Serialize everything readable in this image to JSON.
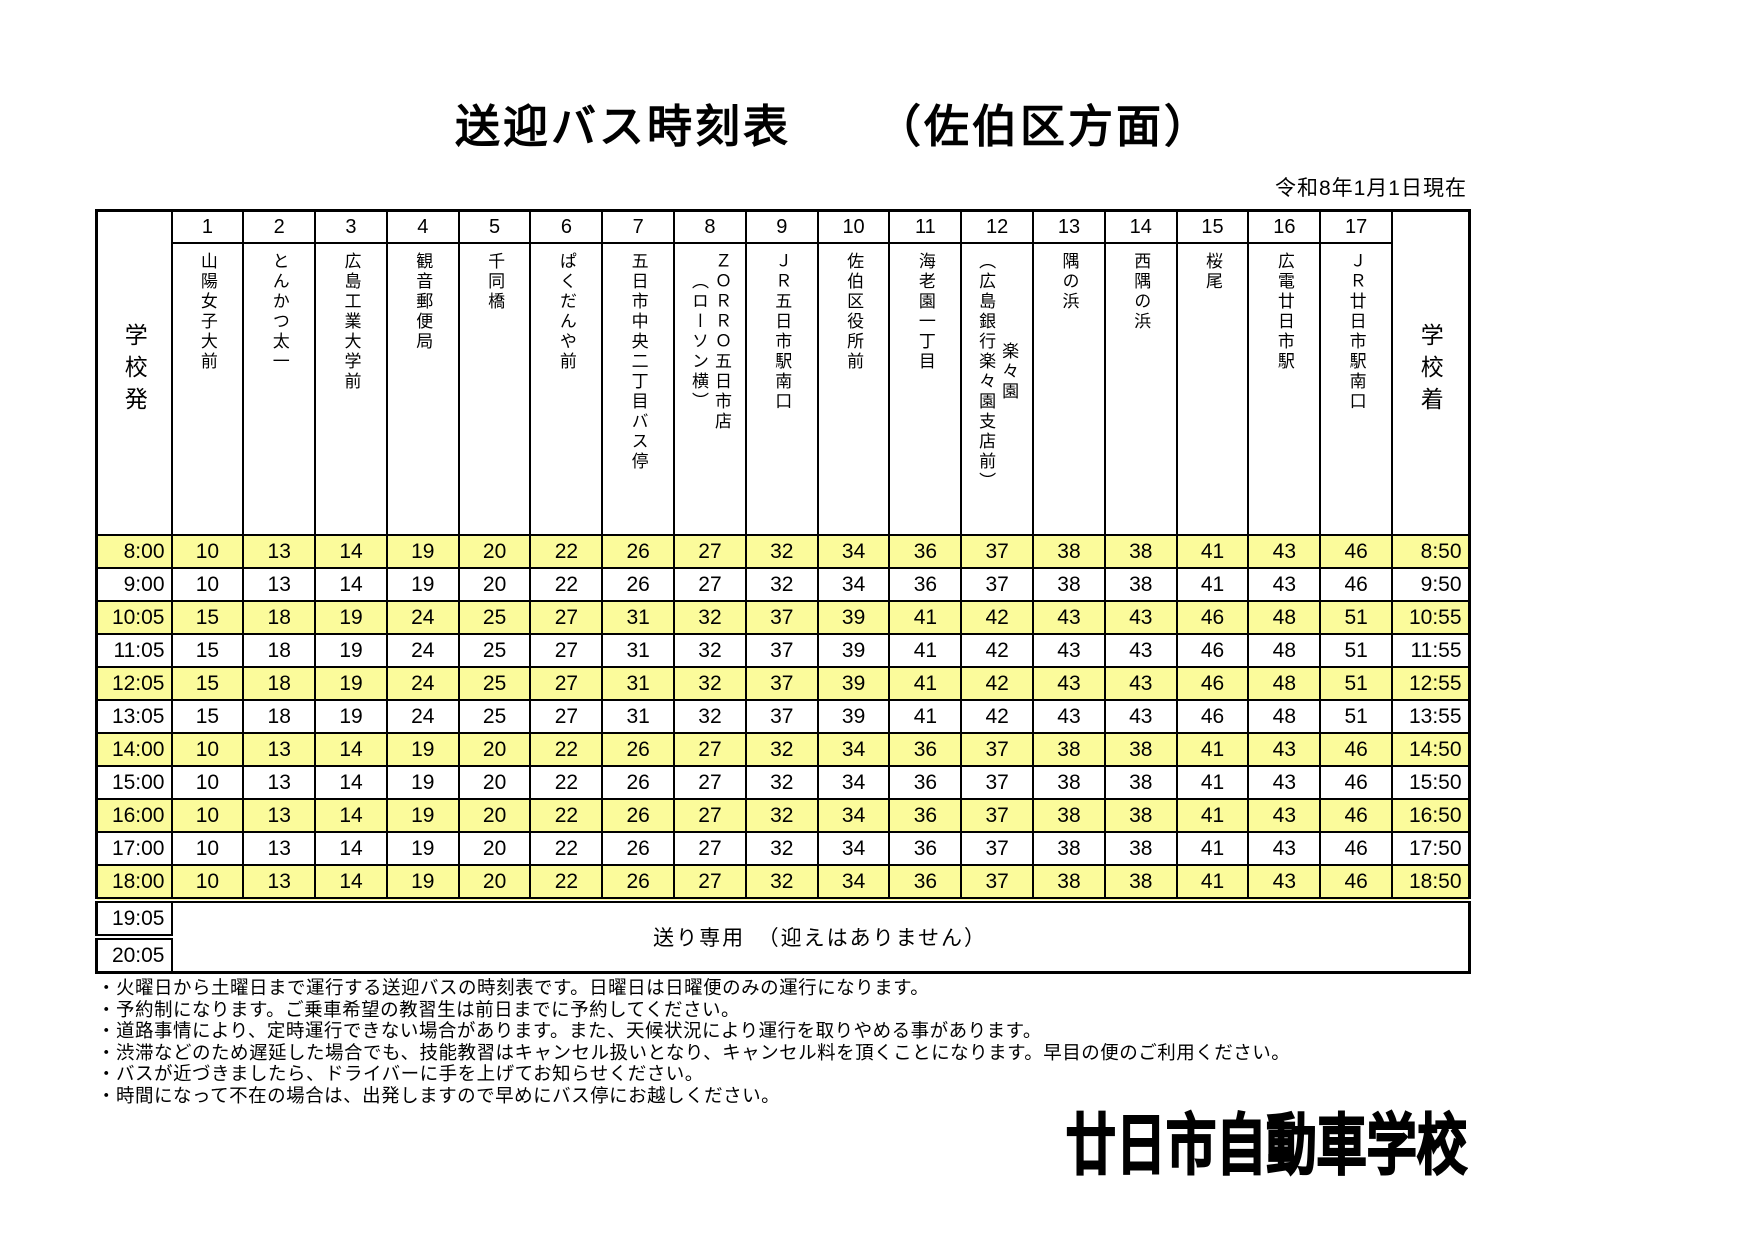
{
  "title": {
    "main": "送迎バス時刻表",
    "direction": "（佐伯区方面）"
  },
  "date_note": "令和8年1月1日現在",
  "colors": {
    "highlight": "#FBFB9B"
  },
  "table": {
    "depart_header": "学校発",
    "arrive_header": "学校着",
    "stops": [
      {
        "no": "1",
        "name": "山陽女子大前"
      },
      {
        "no": "2",
        "name": "とんかつ太一"
      },
      {
        "no": "3",
        "name": "広島工業大学前"
      },
      {
        "no": "4",
        "name": "観音郵便局"
      },
      {
        "no": "5",
        "name": "千同橋"
      },
      {
        "no": "6",
        "name": "ぱくだんや前"
      },
      {
        "no": "7",
        "name": "五日市中央二丁目バス停"
      },
      {
        "no": "8",
        "name": "ＺＯＲＲＯ五日市店\n（ローソン横）"
      },
      {
        "no": "9",
        "name": "ＪＲ五日市駅南口"
      },
      {
        "no": "10",
        "name": "佐伯区役所前"
      },
      {
        "no": "11",
        "name": "海老園一丁目"
      },
      {
        "no": "12",
        "name": "楽々園\n（広島銀行楽々園支店前）"
      },
      {
        "no": "13",
        "name": "隅の浜"
      },
      {
        "no": "14",
        "name": "西隅の浜"
      },
      {
        "no": "15",
        "name": "桜尾"
      },
      {
        "no": "16",
        "name": "広電廿日市駅"
      },
      {
        "no": "17",
        "name": "ＪＲ廿日市駅南口"
      }
    ],
    "rows": [
      {
        "depart": "8:00",
        "highlight": true,
        "minutes": [
          10,
          13,
          14,
          19,
          20,
          22,
          26,
          27,
          32,
          34,
          36,
          37,
          38,
          38,
          41,
          43,
          46
        ],
        "arrive": "8:50"
      },
      {
        "depart": "9:00",
        "highlight": false,
        "minutes": [
          10,
          13,
          14,
          19,
          20,
          22,
          26,
          27,
          32,
          34,
          36,
          37,
          38,
          38,
          41,
          43,
          46
        ],
        "arrive": "9:50"
      },
      {
        "depart": "10:05",
        "highlight": true,
        "minutes": [
          15,
          18,
          19,
          24,
          25,
          27,
          31,
          32,
          37,
          39,
          41,
          42,
          43,
          43,
          46,
          48,
          51
        ],
        "arrive": "10:55"
      },
      {
        "depart": "11:05",
        "highlight": false,
        "minutes": [
          15,
          18,
          19,
          24,
          25,
          27,
          31,
          32,
          37,
          39,
          41,
          42,
          43,
          43,
          46,
          48,
          51
        ],
        "arrive": "11:55"
      },
      {
        "depart": "12:05",
        "highlight": true,
        "minutes": [
          15,
          18,
          19,
          24,
          25,
          27,
          31,
          32,
          37,
          39,
          41,
          42,
          43,
          43,
          46,
          48,
          51
        ],
        "arrive": "12:55"
      },
      {
        "depart": "13:05",
        "highlight": false,
        "minutes": [
          15,
          18,
          19,
          24,
          25,
          27,
          31,
          32,
          37,
          39,
          41,
          42,
          43,
          43,
          46,
          48,
          51
        ],
        "arrive": "13:55"
      },
      {
        "depart": "14:00",
        "highlight": true,
        "minutes": [
          10,
          13,
          14,
          19,
          20,
          22,
          26,
          27,
          32,
          34,
          36,
          37,
          38,
          38,
          41,
          43,
          46
        ],
        "arrive": "14:50"
      },
      {
        "depart": "15:00",
        "highlight": false,
        "minutes": [
          10,
          13,
          14,
          19,
          20,
          22,
          26,
          27,
          32,
          34,
          36,
          37,
          38,
          38,
          41,
          43,
          46
        ],
        "arrive": "15:50"
      },
      {
        "depart": "16:00",
        "highlight": true,
        "minutes": [
          10,
          13,
          14,
          19,
          20,
          22,
          26,
          27,
          32,
          34,
          36,
          37,
          38,
          38,
          41,
          43,
          46
        ],
        "arrive": "16:50"
      },
      {
        "depart": "17:00",
        "highlight": false,
        "minutes": [
          10,
          13,
          14,
          19,
          20,
          22,
          26,
          27,
          32,
          34,
          36,
          37,
          38,
          38,
          41,
          43,
          46
        ],
        "arrive": "17:50"
      },
      {
        "depart": "18:00",
        "highlight": true,
        "minutes": [
          10,
          13,
          14,
          19,
          20,
          22,
          26,
          27,
          32,
          34,
          36,
          37,
          38,
          38,
          41,
          43,
          46
        ],
        "arrive": "18:50"
      }
    ],
    "evening": {
      "times": [
        "19:05",
        "20:05"
      ],
      "note": "送り専用　（迎えはありません）"
    }
  },
  "notes": [
    "・火曜日から土曜日まで運行する送迎バスの時刻表です。日曜日は日曜便のみの運行になります。",
    "・予約制になります。ご乗車希望の教習生は前日までに予約してください。",
    "・道路事情により、定時運行できない場合があります。また、天候状況により運行を取りやめる事があります。",
    "・渋滞などのため遅延した場合でも、技能教習はキャンセル扱いとなり、キャンセル料を頂くことになります。早目の便のご利用ください。",
    "・バスが近づきましたら、ドライバーに手を上げてお知らせください。",
    "・時間になって不在の場合は、出発しますので早めにバス停にお越しください。"
  ],
  "school_name": "廿日市自動車学校"
}
